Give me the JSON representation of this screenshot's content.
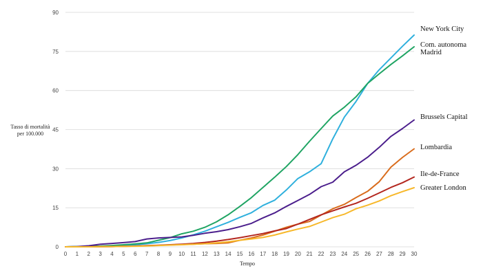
{
  "chart_data": {
    "type": "line",
    "title": "",
    "xlabel": "Tempo",
    "ylabel_lines": [
      "Tasso di mortalità",
      "per 100.000"
    ],
    "xlim": [
      0,
      30
    ],
    "ylim": [
      0,
      90
    ],
    "x_ticks": [
      0,
      1,
      2,
      3,
      4,
      5,
      6,
      7,
      8,
      9,
      10,
      11,
      12,
      13,
      14,
      15,
      16,
      17,
      18,
      19,
      20,
      21,
      22,
      23,
      24,
      25,
      26,
      27,
      28,
      29,
      30
    ],
    "y_ticks": [
      0,
      15,
      30,
      45,
      60,
      75,
      90
    ],
    "grid": "horizontal",
    "legend": "none",
    "x": [
      0,
      1,
      2,
      3,
      4,
      5,
      6,
      7,
      8,
      9,
      10,
      11,
      12,
      13,
      14,
      15,
      16,
      17,
      18,
      19,
      20,
      21,
      22,
      23,
      24,
      25,
      26,
      27,
      28,
      29,
      30
    ],
    "series": [
      {
        "name": "New York City",
        "color": "#2fb0dd",
        "values": [
          0,
          0.05,
          0.1,
          0.2,
          0.3,
          0.5,
          0.8,
          1.2,
          1.7,
          2.4,
          3.4,
          4.6,
          6.0,
          7.7,
          9.4,
          11.3,
          13.1,
          15.9,
          17.9,
          21.8,
          26.2,
          28.8,
          31.9,
          41.4,
          49.8,
          55.8,
          62.7,
          68.0,
          72.5,
          77.0,
          81.3
        ]
      },
      {
        "name_lines": [
          "Com. autonoma",
          "Madrid"
        ],
        "color": "#1fa463",
        "values": [
          0,
          0.1,
          0.2,
          0.3,
          0.5,
          0.8,
          1.1,
          1.5,
          2.5,
          3.5,
          5.0,
          6.0,
          7.5,
          9.6,
          12.3,
          15.5,
          18.9,
          22.8,
          26.7,
          30.8,
          35.4,
          40.5,
          45.4,
          50.2,
          53.6,
          57.6,
          62.7,
          66.4,
          70.0,
          73.3,
          76.8
        ]
      },
      {
        "name": "Brussels Capital",
        "color": "#4b1e8c",
        "values": [
          0,
          0.1,
          0.4,
          1.0,
          1.3,
          1.6,
          2.0,
          3.0,
          3.4,
          3.6,
          3.8,
          4.4,
          5.2,
          5.8,
          6.6,
          7.7,
          9.0,
          11.1,
          13.0,
          15.5,
          17.8,
          20.1,
          23.1,
          24.8,
          28.8,
          31.3,
          34.4,
          38.2,
          42.4,
          45.4,
          48.7
        ]
      },
      {
        "name": "Lombardia",
        "color": "#d96c1c",
        "values": [
          0,
          0,
          0,
          0.05,
          0.1,
          0.2,
          0.3,
          0.4,
          0.55,
          0.7,
          0.9,
          1.0,
          1.2,
          1.3,
          1.5,
          2.5,
          3.4,
          4.5,
          6.0,
          7.5,
          8.7,
          9.7,
          12.2,
          14.6,
          16.3,
          18.9,
          21.3,
          25.0,
          30.6,
          34.3,
          37.6
        ]
      },
      {
        "name": "Ile-de-France",
        "color": "#b3261e",
        "values": [
          0,
          0,
          0,
          0.05,
          0.1,
          0.2,
          0.3,
          0.45,
          0.6,
          0.8,
          1.0,
          1.3,
          1.7,
          2.2,
          2.8,
          3.5,
          4.3,
          5.1,
          6.1,
          7.0,
          8.7,
          10.5,
          12.3,
          13.8,
          15.3,
          16.7,
          18.6,
          20.7,
          22.8,
          24.6,
          26.8
        ]
      },
      {
        "name": "Greater London",
        "color": "#f7b82a",
        "values": [
          0,
          0,
          0,
          0.05,
          0.1,
          0.15,
          0.25,
          0.35,
          0.5,
          0.65,
          0.8,
          1.0,
          1.2,
          1.5,
          1.9,
          2.5,
          3.0,
          3.6,
          4.5,
          5.7,
          6.8,
          7.8,
          9.5,
          11.2,
          12.5,
          14.6,
          16.0,
          17.6,
          19.6,
          21.2,
          22.7
        ]
      }
    ]
  }
}
